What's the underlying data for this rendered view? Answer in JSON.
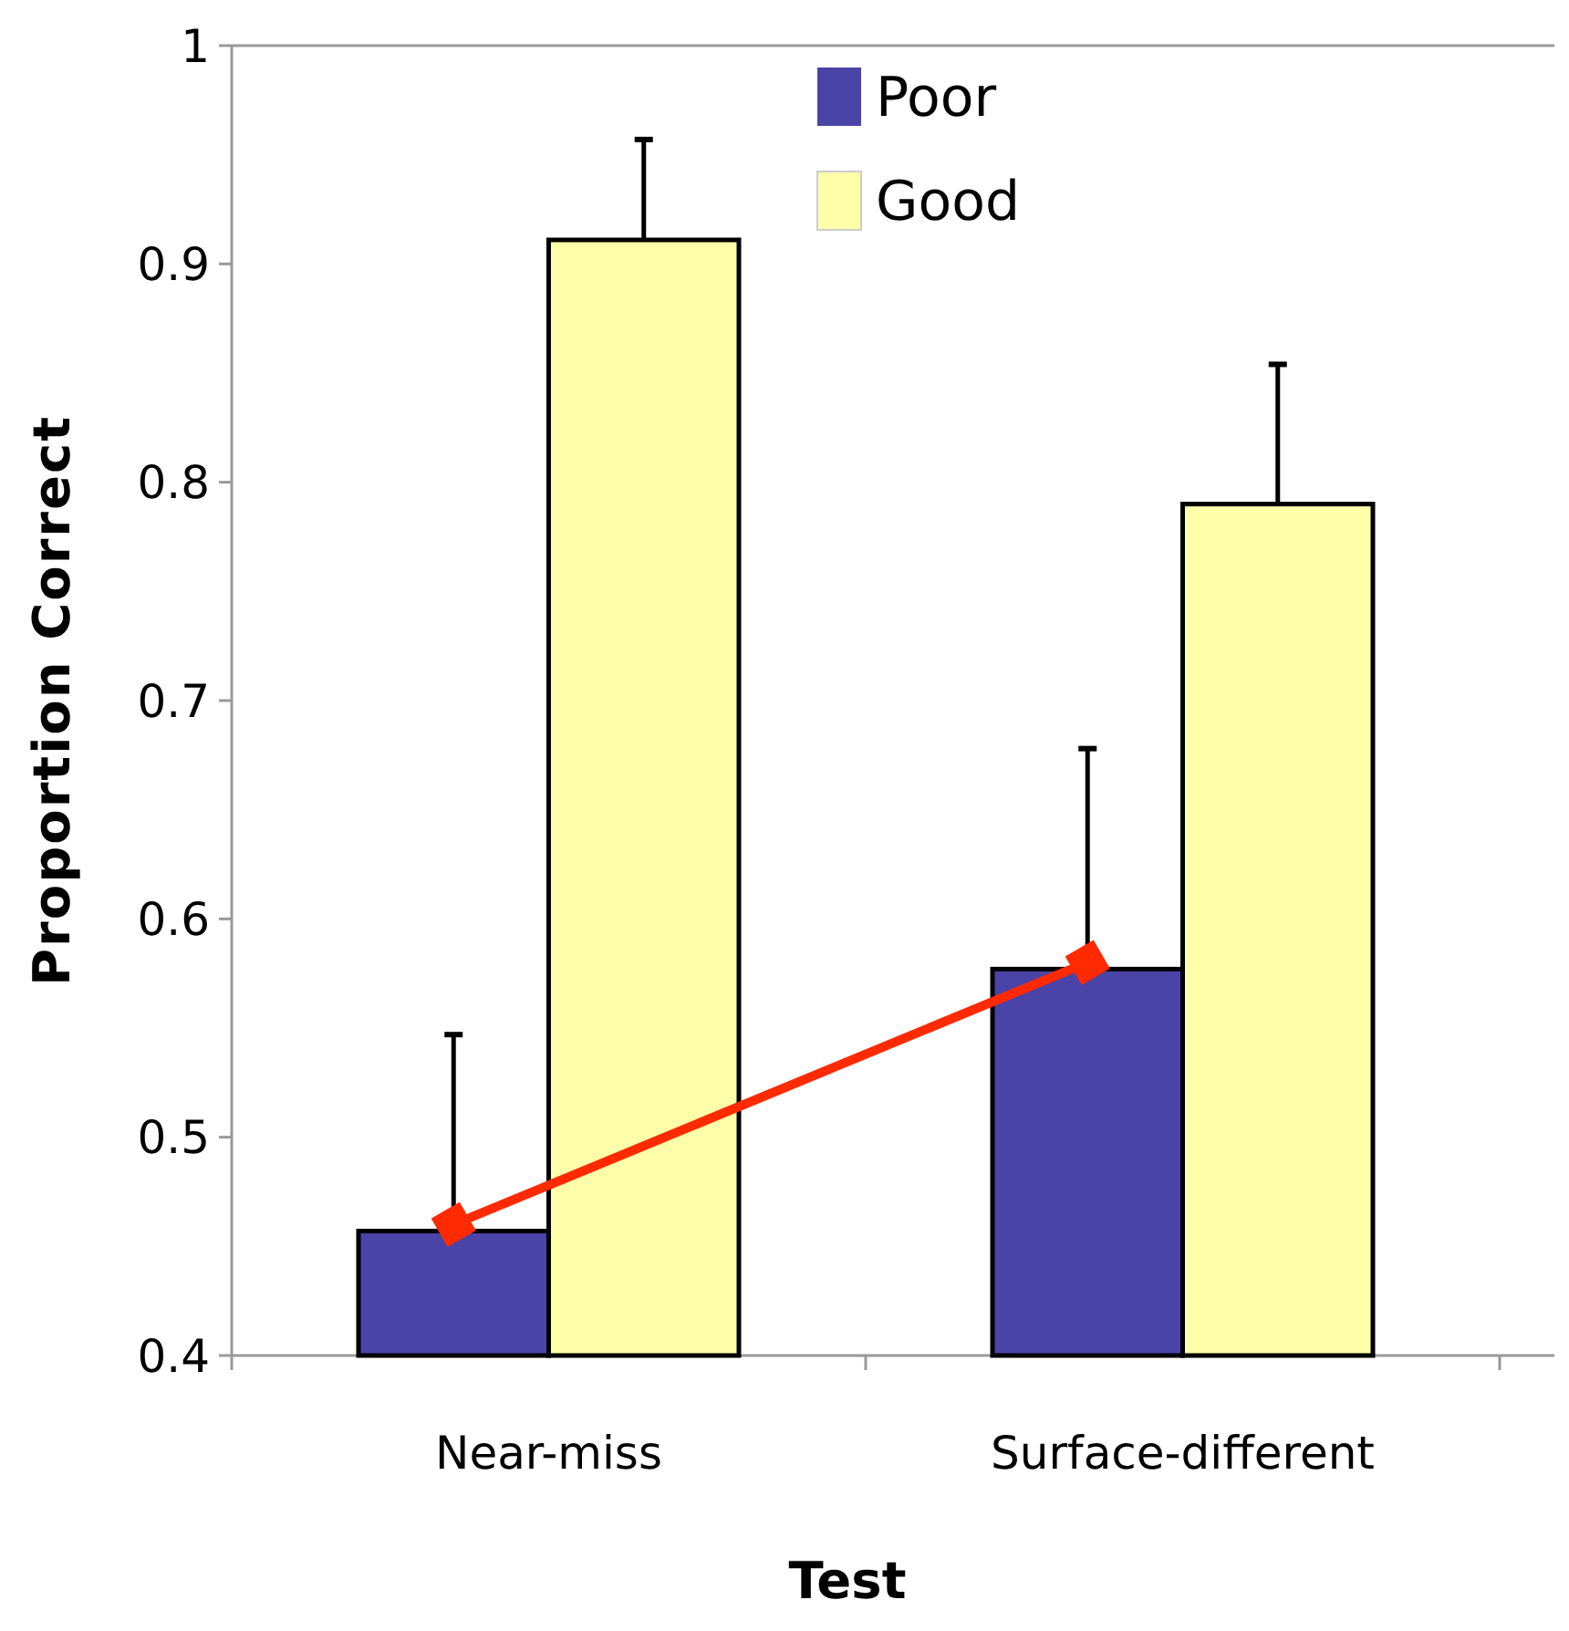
{
  "chart_data": {
    "type": "bar",
    "xlabel": "Test",
    "ylabel": "Proportion Correct",
    "categories": [
      "Near-miss",
      "Surface-different"
    ],
    "ylim": [
      0.4,
      1
    ],
    "yticks": [
      0.4,
      0.5,
      0.6,
      0.7,
      0.8,
      0.9,
      1
    ],
    "grid": false,
    "legend": "top",
    "series": [
      {
        "name": "Poor",
        "color": "#4a44a8",
        "values": [
          0.457,
          0.577
        ],
        "errors": [
          [
            0.457,
            0.547
          ],
          [
            0.577,
            0.678
          ]
        ]
      },
      {
        "name": "Good",
        "color": "#ffffaa",
        "values": [
          0.911,
          0.79
        ],
        "errors": [
          [
            0.911,
            0.957
          ],
          [
            0.79,
            0.854
          ]
        ]
      },
      {
        "type": "line",
        "color": "#ff2a00",
        "values": [
          0.46,
          0.58
        ],
        "marker": "diamond"
      }
    ]
  }
}
